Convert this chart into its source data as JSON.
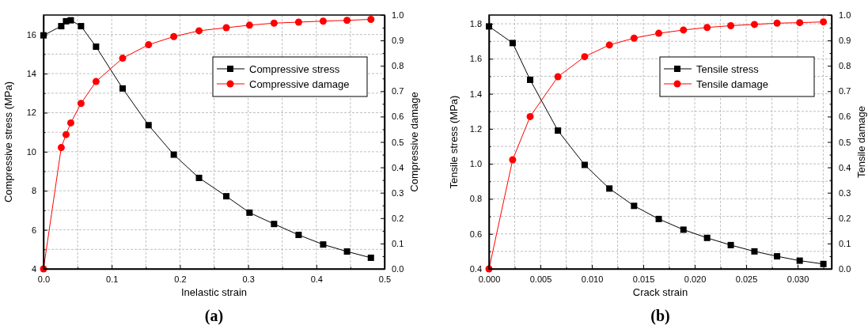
{
  "chart_data": [
    {
      "type": "line",
      "title": "(a)",
      "xlabel": "Inelastic strain",
      "ylabel": "Compressive stress (MPa)",
      "y2label": "Compressive damage",
      "xlim": [
        0,
        0.5
      ],
      "xticks": [
        {
          "value": 0,
          "label": "0.0"
        },
        {
          "value": 0.05,
          "label": null
        },
        0.1,
        {
          "value": 0.15,
          "label": null
        },
        0.2,
        {
          "value": 0.25,
          "label": null
        },
        0.3,
        {
          "value": 0.35,
          "label": null
        },
        0.4,
        {
          "value": 0.45,
          "label": null
        },
        0.5
      ],
      "ylim": [
        4,
        17
      ],
      "yticks": [
        4,
        {
          "value": 5,
          "label": null
        },
        6,
        {
          "value": 7,
          "label": null
        },
        8,
        {
          "value": 9,
          "label": null
        },
        10,
        {
          "value": 11,
          "label": null
        },
        12,
        {
          "value": 13,
          "label": null
        },
        14,
        {
          "value": 15,
          "label": null
        },
        16
      ],
      "y2lim": [
        0,
        1
      ],
      "y2ticks": [
        {
          "value": 0,
          "label": "0.0"
        },
        {
          "value": 0.05,
          "label": null
        },
        0.1,
        {
          "value": 0.15,
          "label": null
        },
        0.2,
        {
          "value": 0.25,
          "label": null
        },
        0.3,
        {
          "value": 0.35,
          "label": null
        },
        0.4,
        {
          "value": 0.45,
          "label": null
        },
        0.5,
        {
          "value": 0.55,
          "label": null
        },
        0.6,
        {
          "value": 0.65,
          "label": null
        },
        0.7,
        {
          "value": 0.75,
          "label": null
        },
        0.8,
        {
          "value": 0.85,
          "label": null
        },
        0.9,
        {
          "value": 0.95,
          "label": null
        },
        {
          "value": 1,
          "label": "1.0"
        }
      ],
      "grid": true,
      "legend": "top right",
      "line_style": "solid",
      "series": [
        {
          "name": "Compressive stress",
          "color": "#000000",
          "marker": "square",
          "x": [
            0,
            0.026,
            0.033,
            0.04,
            0.055,
            0.077,
            0.116,
            0.154,
            0.191,
            0.228,
            0.268,
            0.302,
            0.338,
            0.374,
            0.41,
            0.445,
            0.48
          ],
          "values": [
            15.96,
            16.43,
            16.68,
            16.73,
            16.43,
            15.38,
            13.24,
            11.36,
            9.85,
            8.66,
            7.72,
            6.88,
            6.3,
            5.74,
            5.25,
            4.89,
            4.57
          ]
        },
        {
          "name": "Compressive damage",
          "color": "#ff0000",
          "marker": "circle",
          "axis": "y2",
          "x": [
            0,
            0.026,
            0.033,
            0.04,
            0.055,
            0.077,
            0.116,
            0.154,
            0.191,
            0.228,
            0.268,
            0.302,
            0.338,
            0.374,
            0.41,
            0.445,
            0.48
          ],
          "values": [
            0,
            0.478,
            0.529,
            0.575,
            0.652,
            0.738,
            0.83,
            0.883,
            0.915,
            0.938,
            0.95,
            0.96,
            0.968,
            0.972,
            0.976,
            0.979,
            0.983
          ]
        }
      ]
    },
    {
      "type": "line",
      "title": "(b)",
      "xlabel": "Crack strain",
      "ylabel": "Tensile stress (MPa)",
      "y2label": "Tensile damage",
      "xlim": [
        0,
        0.0333
      ],
      "xticks": [
        {
          "value": 0,
          "label": "0.000"
        },
        {
          "value": 0.0025,
          "label": null
        },
        {
          "value": 0.005,
          "label": "0.005"
        },
        {
          "value": 0.0075,
          "label": null
        },
        {
          "value": 0.01,
          "label": "0.010"
        },
        {
          "value": 0.0125,
          "label": null
        },
        {
          "value": 0.015,
          "label": "0.015"
        },
        {
          "value": 0.0175,
          "label": null
        },
        {
          "value": 0.02,
          "label": "0.020"
        },
        {
          "value": 0.0225,
          "label": null
        },
        {
          "value": 0.025,
          "label": "0.025"
        },
        {
          "value": 0.0275,
          "label": null
        },
        {
          "value": 0.03,
          "label": "0.030"
        },
        {
          "value": 0.0325,
          "label": null
        }
      ],
      "ylim": [
        0.4,
        1.85
      ],
      "yticks": [
        0.4,
        {
          "value": 0.5,
          "label": null
        },
        0.6,
        {
          "value": 0.7,
          "label": null
        },
        0.8,
        {
          "value": 0.9,
          "label": null
        },
        {
          "value": 1,
          "label": "1.0"
        },
        {
          "value": 1.1,
          "label": null
        },
        1.2,
        {
          "value": 1.3,
          "label": null
        },
        1.4,
        {
          "value": 1.5,
          "label": null
        },
        1.6,
        {
          "value": 1.7,
          "label": null
        },
        1.8
      ],
      "y2lim": [
        0,
        1
      ],
      "y2ticks": [
        {
          "value": 0,
          "label": "0.0"
        },
        {
          "value": 0.05,
          "label": null
        },
        0.1,
        {
          "value": 0.15,
          "label": null
        },
        0.2,
        {
          "value": 0.25,
          "label": null
        },
        0.3,
        {
          "value": 0.35,
          "label": null
        },
        0.4,
        {
          "value": 0.45,
          "label": null
        },
        0.5,
        {
          "value": 0.55,
          "label": null
        },
        0.6,
        {
          "value": 0.65,
          "label": null
        },
        0.7,
        {
          "value": 0.75,
          "label": null
        },
        0.8,
        {
          "value": 0.85,
          "label": null
        },
        0.9,
        {
          "value": 0.95,
          "label": null
        },
        {
          "value": 1,
          "label": "1.0"
        }
      ],
      "grid": true,
      "legend": "top right",
      "line_style": "solid",
      "series": [
        {
          "name": "Tensile stress",
          "color": "#000000",
          "marker": "square",
          "x": [
            0,
            0.0023,
            0.004,
            0.0067,
            0.0093,
            0.0117,
            0.0141,
            0.0165,
            0.0189,
            0.0212,
            0.0235,
            0.0258,
            0.028,
            0.0302,
            0.0325
          ],
          "values": [
            1.785,
            1.69,
            1.48,
            1.19,
            0.994,
            0.859,
            0.76,
            0.685,
            0.624,
            0.577,
            0.536,
            0.5,
            0.472,
            0.447,
            0.428
          ]
        },
        {
          "name": "Tensile damage",
          "color": "#ff0000",
          "marker": "circle",
          "axis": "y2",
          "x": [
            0,
            0.0023,
            0.004,
            0.0067,
            0.0093,
            0.0117,
            0.0141,
            0.0165,
            0.0189,
            0.0212,
            0.0235,
            0.0258,
            0.028,
            0.0302,
            0.0325
          ],
          "values": [
            0,
            0.43,
            0.6,
            0.757,
            0.836,
            0.882,
            0.909,
            0.928,
            0.941,
            0.951,
            0.958,
            0.963,
            0.968,
            0.97,
            0.973
          ]
        }
      ]
    }
  ]
}
